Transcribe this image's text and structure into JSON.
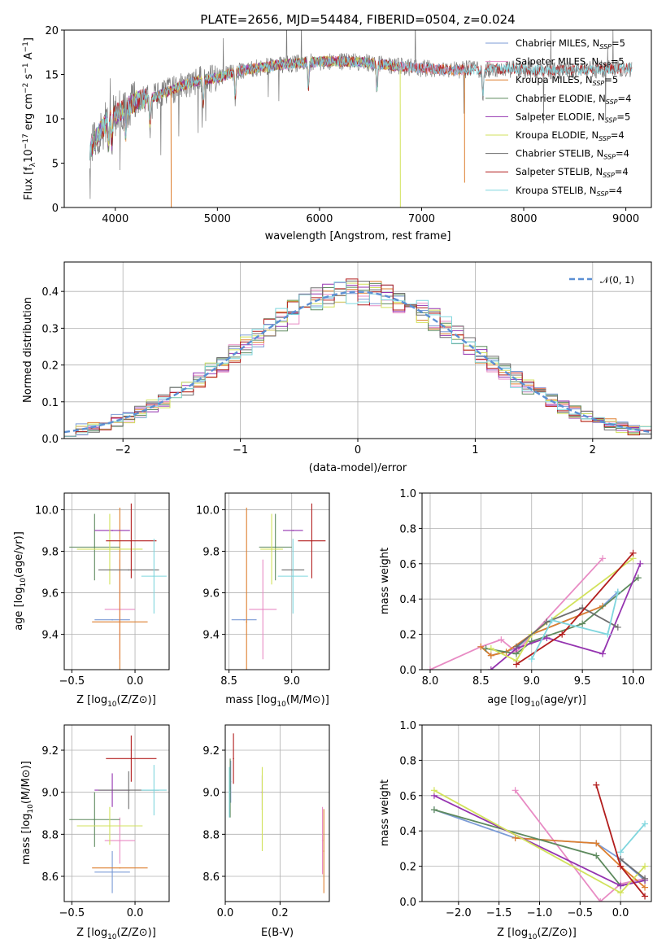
{
  "figure": {
    "title": "PLATE=2656, MJD=54484, FIBERID=0504, z=0.024"
  },
  "colors": {
    "Chabrier MILES": "#7b9bd6",
    "Salpeter MILES": "#e88bc4",
    "Kroupa MILES": "#dd7f2f",
    "Chabrier ELODIE": "#5e8a5e",
    "Salpeter ELODIE": "#9534b0",
    "Kroupa ELODIE": "#d2e25c",
    "Chabrier STELIB": "#6e6e6e",
    "Salpeter STELIB": "#b21d1d",
    "Kroupa STELIB": "#7fd6de",
    "normal": "#5b8fd4"
  },
  "chart_data": [
    {
      "id": "spectrum",
      "type": "line",
      "xlabel": "wavelength [Angstrom, rest frame]",
      "ylabel": "Flux [f_λ 10^-17 erg cm^-2 s^-1 A^-1]",
      "xlim": [
        3500,
        9250
      ],
      "ylim": [
        0,
        20
      ],
      "xticks": [
        4000,
        5000,
        6000,
        7000,
        8000,
        9000
      ],
      "yticks": [
        0,
        5,
        10,
        15,
        20
      ],
      "legend_position": "right",
      "legend": [
        {
          "model": "Chabrier MILES",
          "nssp": "5"
        },
        {
          "model": "Salpeter MILES",
          "nssp": "5"
        },
        {
          "model": "Kroupa MILES",
          "nssp": "5"
        },
        {
          "model": "Chabrier ELODIE",
          "nssp": "4"
        },
        {
          "model": "Salpeter ELODIE",
          "nssp": "5"
        },
        {
          "model": "Kroupa ELODIE",
          "nssp": "4"
        },
        {
          "model": "Chabrier STELIB",
          "nssp": "4"
        },
        {
          "model": "Salpeter STELIB",
          "nssp": "4"
        },
        {
          "model": "Kroupa STELIB",
          "nssp": "4"
        }
      ],
      "continuum_model": {
        "x": [
          3750,
          3850,
          3950,
          4050,
          4200,
          4400,
          4600,
          4800,
          5000,
          5200,
          5500,
          5800,
          6100,
          6400,
          6700,
          7000,
          7300,
          7600,
          7900,
          8200,
          8500,
          8800,
          9050
        ],
        "y": [
          6.5,
          8.5,
          10.2,
          10.8,
          12.0,
          12.5,
          13.5,
          14.3,
          14.6,
          15.4,
          15.9,
          16.3,
          16.5,
          16.4,
          16.0,
          15.7,
          15.5,
          15.6,
          15.6,
          15.4,
          15.5,
          15.6,
          15.7
        ]
      },
      "absorption_lines": [
        3934,
        3968,
        4102,
        4340,
        4861,
        5175,
        5890,
        6563,
        7600
      ]
    },
    {
      "id": "residuals",
      "type": "area",
      "xlabel": "(data-model)/error",
      "ylabel": "Normed distribution",
      "xlim": [
        -2.5,
        2.5
      ],
      "ylim": [
        0,
        0.48
      ],
      "xticks": [
        -2,
        -1,
        0,
        1,
        2
      ],
      "yticks": [
        0.0,
        0.1,
        0.2,
        0.3,
        0.4
      ],
      "grid": true,
      "legend_position": "top-right",
      "reference": "N(0,1)",
      "bin_width": 0.1,
      "bin_start": -2.5
    },
    {
      "id": "age_vs_Z",
      "type": "scatter",
      "xlabel": "Z [log10(Z/Z⊙)]",
      "ylabel": "age  [log10(age/yr)]",
      "xlim": [
        -0.56,
        0.27
      ],
      "ylim": [
        9.23,
        10.08
      ],
      "xticks": [
        -0.5,
        0.0
      ],
      "yticks": [
        9.4,
        9.6,
        9.8,
        10.0
      ],
      "grid": true,
      "points": [
        {
          "model": "Chabrier MILES",
          "x": -0.18,
          "xerr": 0.14,
          "y": 9.47,
          "yerr": 0.0
        },
        {
          "model": "Salpeter MILES",
          "x": -0.12,
          "xerr": 0.12,
          "y": 9.52,
          "yerr": 0.24
        },
        {
          "model": "Kroupa MILES",
          "x": -0.12,
          "xerr": 0.22,
          "y": 9.46,
          "yerr": 0.55
        },
        {
          "model": "Chabrier ELODIE",
          "x": -0.32,
          "xerr": 0.2,
          "y": 9.82,
          "yerr": 0.16
        },
        {
          "model": "Salpeter ELODIE",
          "x": -0.18,
          "xerr": 0.14,
          "y": 9.9,
          "yerr": 0.0
        },
        {
          "model": "Kroupa ELODIE",
          "x": -0.2,
          "xerr": 0.26,
          "y": 9.81,
          "yerr": 0.17
        },
        {
          "model": "Chabrier STELIB",
          "x": -0.05,
          "xerr": 0.24,
          "y": 9.71,
          "yerr": 0.0
        },
        {
          "model": "Salpeter STELIB",
          "x": -0.03,
          "xerr": 0.2,
          "y": 9.85,
          "yerr": 0.18
        },
        {
          "model": "Kroupa STELIB",
          "x": 0.15,
          "xerr": 0.1,
          "y": 9.68,
          "yerr": 0.18
        }
      ]
    },
    {
      "id": "age_vs_mass",
      "type": "scatter",
      "xlabel": "mass [log10(M/M⊙)]",
      "ylabel": "",
      "xlim": [
        8.47,
        9.3
      ],
      "ylim": [
        9.23,
        10.08
      ],
      "xticks": [
        8.5,
        9.0
      ],
      "yticks": [
        9.4,
        9.6,
        9.8,
        10.0
      ],
      "grid": true,
      "points": [
        {
          "model": "Chabrier MILES",
          "x": 8.62,
          "xerr": 0.1,
          "y": 9.47,
          "yerr": 0.0
        },
        {
          "model": "Salpeter MILES",
          "x": 8.77,
          "xerr": 0.11,
          "y": 9.52,
          "yerr": 0.24
        },
        {
          "model": "Kroupa MILES",
          "x": 8.64,
          "xerr": 0.0,
          "y": 9.46,
          "yerr": 0.55
        },
        {
          "model": "Chabrier ELODIE",
          "x": 8.87,
          "xerr": 0.13,
          "y": 9.82,
          "yerr": 0.16
        },
        {
          "model": "Salpeter ELODIE",
          "x": 9.01,
          "xerr": 0.08,
          "y": 9.9,
          "yerr": 0.0
        },
        {
          "model": "Kroupa ELODIE",
          "x": 8.84,
          "xerr": 0.09,
          "y": 9.81,
          "yerr": 0.17
        },
        {
          "model": "Chabrier STELIB",
          "x": 9.01,
          "xerr": 0.09,
          "y": 9.71,
          "yerr": 0.0
        },
        {
          "model": "Salpeter STELIB",
          "x": 9.16,
          "xerr": 0.11,
          "y": 9.85,
          "yerr": 0.18
        },
        {
          "model": "Kroupa STELIB",
          "x": 9.01,
          "xerr": 0.12,
          "y": 9.68,
          "yerr": 0.18
        }
      ]
    },
    {
      "id": "weight_vs_age",
      "type": "line",
      "xlabel": "age  [log10(age/yr)]",
      "ylabel": "mass weight",
      "xlim": [
        7.92,
        10.18
      ],
      "ylim": [
        0,
        1.0
      ],
      "xticks": [
        8.0,
        8.5,
        9.0,
        9.5,
        10.0
      ],
      "yticks": [
        0.0,
        0.2,
        0.4,
        0.6,
        0.8,
        1.0
      ],
      "grid": true,
      "series": [
        {
          "model": "Chabrier MILES",
          "x": [
            8.5,
            8.6,
            8.85,
            9.0,
            9.7,
            9.85
          ],
          "y": [
            0.13,
            0.08,
            0.12,
            0.2,
            0.36,
            0.44
          ]
        },
        {
          "model": "Salpeter MILES",
          "x": [
            8.0,
            8.5,
            8.7,
            8.85,
            9.7
          ],
          "y": [
            0.0,
            0.13,
            0.17,
            0.1,
            0.63
          ]
        },
        {
          "model": "Kroupa MILES",
          "x": [
            8.5,
            8.6,
            8.75,
            9.0,
            9.7
          ],
          "y": [
            0.13,
            0.08,
            0.1,
            0.2,
            0.36
          ]
        },
        {
          "model": "Chabrier ELODIE",
          "x": [
            8.55,
            8.85,
            9.0,
            9.5,
            10.05
          ],
          "y": [
            0.12,
            0.09,
            0.16,
            0.26,
            0.52
          ]
        },
        {
          "model": "Salpeter ELODIE",
          "x": [
            8.6,
            8.85,
            9.15,
            9.7,
            10.07
          ],
          "y": [
            0.0,
            0.12,
            0.18,
            0.09,
            0.6
          ]
        },
        {
          "model": "Kroupa ELODIE",
          "x": [
            8.6,
            8.85,
            9.0,
            10.0
          ],
          "y": [
            0.12,
            0.05,
            0.2,
            0.63
          ]
        },
        {
          "model": "Chabrier STELIB",
          "x": [
            8.85,
            9.15,
            9.5,
            9.85
          ],
          "y": [
            0.13,
            0.27,
            0.35,
            0.24
          ]
        },
        {
          "model": "Salpeter STELIB",
          "x": [
            8.85,
            9.3,
            10.0
          ],
          "y": [
            0.03,
            0.2,
            0.66
          ]
        },
        {
          "model": "Kroupa STELIB",
          "x": [
            9.0,
            9.2,
            9.75,
            9.85
          ],
          "y": [
            0.06,
            0.28,
            0.2,
            0.44
          ]
        }
      ]
    },
    {
      "id": "mass_vs_Z",
      "type": "scatter",
      "xlabel": "Z [log10(Z/Z⊙)]",
      "ylabel": "mass [log10(M/M⊙)]",
      "xlim": [
        -0.56,
        0.27
      ],
      "ylim": [
        8.48,
        9.32
      ],
      "xticks": [
        -0.5,
        0.0
      ],
      "yticks": [
        8.6,
        8.8,
        9.0,
        9.2
      ],
      "grid": true,
      "points": [
        {
          "model": "Chabrier MILES",
          "x": -0.18,
          "xerr": 0.14,
          "y": 8.62,
          "yerr": 0.1
        },
        {
          "model": "Salpeter MILES",
          "x": -0.12,
          "xerr": 0.12,
          "y": 8.77,
          "yerr": 0.11
        },
        {
          "model": "Kroupa MILES",
          "x": -0.12,
          "xerr": 0.22,
          "y": 8.64,
          "yerr": 0.0
        },
        {
          "model": "Chabrier ELODIE",
          "x": -0.32,
          "xerr": 0.2,
          "y": 8.87,
          "yerr": 0.13
        },
        {
          "model": "Salpeter ELODIE",
          "x": -0.18,
          "xerr": 0.14,
          "y": 9.01,
          "yerr": 0.08
        },
        {
          "model": "Kroupa ELODIE",
          "x": -0.2,
          "xerr": 0.26,
          "y": 8.84,
          "yerr": 0.09
        },
        {
          "model": "Chabrier STELIB",
          "x": -0.05,
          "xerr": 0.24,
          "y": 9.01,
          "yerr": 0.09
        },
        {
          "model": "Salpeter STELIB",
          "x": -0.03,
          "xerr": 0.2,
          "y": 9.16,
          "yerr": 0.11
        },
        {
          "model": "Kroupa STELIB",
          "x": 0.15,
          "xerr": 0.1,
          "y": 9.01,
          "yerr": 0.12
        }
      ]
    },
    {
      "id": "mass_vs_ebv",
      "type": "scatter",
      "xlabel": "E(B-V)",
      "ylabel": "",
      "xlim": [
        0.0,
        0.38
      ],
      "ylim": [
        8.48,
        9.32
      ],
      "xticks": [
        0.0,
        0.2
      ],
      "yticks": [
        8.6,
        8.8,
        9.0,
        9.2
      ],
      "grid": true,
      "points": [
        {
          "model": "Chabrier MILES",
          "x": 0.02,
          "xerr": 0.0,
          "y": 9.05,
          "yerr": 0.1
        },
        {
          "model": "Chabrier ELODIE",
          "x": 0.018,
          "xerr": 0.0,
          "y": 9.02,
          "yerr": 0.14
        },
        {
          "model": "Salpeter ELODIE",
          "x": 0.135,
          "xerr": 0.0,
          "y": 9.0,
          "yerr": 0.08
        },
        {
          "model": "Kroupa ELODIE",
          "x": 0.135,
          "xerr": 0.0,
          "y": 8.92,
          "yerr": 0.2
        },
        {
          "model": "Salpeter STELIB",
          "x": 0.03,
          "xerr": 0.0,
          "y": 9.16,
          "yerr": 0.12
        },
        {
          "model": "Kroupa STELIB",
          "x": 0.015,
          "xerr": 0.0,
          "y": 9.0,
          "yerr": 0.12
        },
        {
          "model": "Salpeter MILES",
          "x": 0.355,
          "xerr": 0.0,
          "y": 8.77,
          "yerr": 0.16
        },
        {
          "model": "Kroupa MILES",
          "x": 0.36,
          "xerr": 0.0,
          "y": 8.72,
          "yerr": 0.2
        }
      ]
    },
    {
      "id": "weight_vs_Z",
      "type": "line",
      "xlabel": "Z [log10(Z/Z⊙)]",
      "ylabel": "mass weight",
      "xlim": [
        -2.45,
        0.38
      ],
      "ylim": [
        0,
        1.0
      ],
      "xticks": [
        -2.0,
        -1.5,
        -1.0,
        -0.5,
        0.0
      ],
      "yticks": [
        0.0,
        0.2,
        0.4,
        0.6,
        0.8,
        1.0
      ],
      "grid": true,
      "series": [
        {
          "model": "Chabrier MILES",
          "x": [
            -2.3,
            -1.3,
            -0.3,
            0.0,
            0.3
          ],
          "y": [
            0.52,
            0.36,
            0.33,
            0.24,
            0.12
          ]
        },
        {
          "model": "Salpeter MILES",
          "x": [
            -1.3,
            -0.25,
            0.0,
            0.3
          ],
          "y": [
            0.63,
            0.0,
            0.1,
            0.13
          ]
        },
        {
          "model": "Kroupa MILES",
          "x": [
            -1.3,
            -0.3,
            0.0,
            0.3
          ],
          "y": [
            0.36,
            0.33,
            0.2,
            0.08
          ]
        },
        {
          "model": "Chabrier ELODIE",
          "x": [
            -2.3,
            -0.3,
            0.0,
            0.3
          ],
          "y": [
            0.52,
            0.26,
            0.09,
            0.12
          ]
        },
        {
          "model": "Salpeter ELODIE",
          "x": [
            -2.3,
            0.0,
            0.3
          ],
          "y": [
            0.6,
            0.09,
            0.12
          ]
        },
        {
          "model": "Kroupa ELODIE",
          "x": [
            -2.3,
            0.0,
            0.3
          ],
          "y": [
            0.63,
            0.05,
            0.2
          ]
        },
        {
          "model": "Chabrier STELIB",
          "x": [
            0.0,
            0.3
          ],
          "y": [
            0.24,
            0.13
          ]
        },
        {
          "model": "Salpeter STELIB",
          "x": [
            -0.3,
            0.0,
            0.3
          ],
          "y": [
            0.66,
            0.2,
            0.03
          ]
        },
        {
          "model": "Kroupa STELIB",
          "x": [
            0.0,
            0.3
          ],
          "y": [
            0.28,
            0.44
          ]
        }
      ]
    }
  ]
}
